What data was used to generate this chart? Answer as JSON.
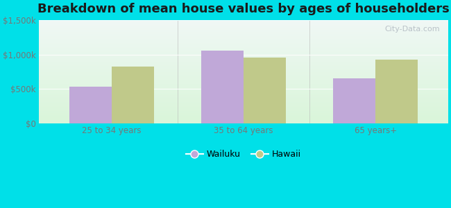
{
  "title": "Breakdown of mean house values by ages of householders",
  "categories": [
    "25 to 34 years",
    "35 to 64 years",
    "65 years+"
  ],
  "wailuku_values": [
    530000,
    1060000,
    660000
  ],
  "hawaii_values": [
    830000,
    960000,
    930000
  ],
  "wailuku_color": "#c0a8d8",
  "hawaii_color": "#c0c98a",
  "ylim": [
    0,
    1500000
  ],
  "yticks": [
    0,
    500000,
    1000000,
    1500000
  ],
  "ytick_labels": [
    "$0",
    "$500k",
    "$1,000k",
    "$1,500k"
  ],
  "background_outer": "#00e0e8",
  "bar_width": 0.32,
  "legend_labels": [
    "Wailuku",
    "Hawaii"
  ],
  "watermark": "City-Data.com",
  "title_fontsize": 13,
  "tick_fontsize": 8.5,
  "legend_fontsize": 9
}
